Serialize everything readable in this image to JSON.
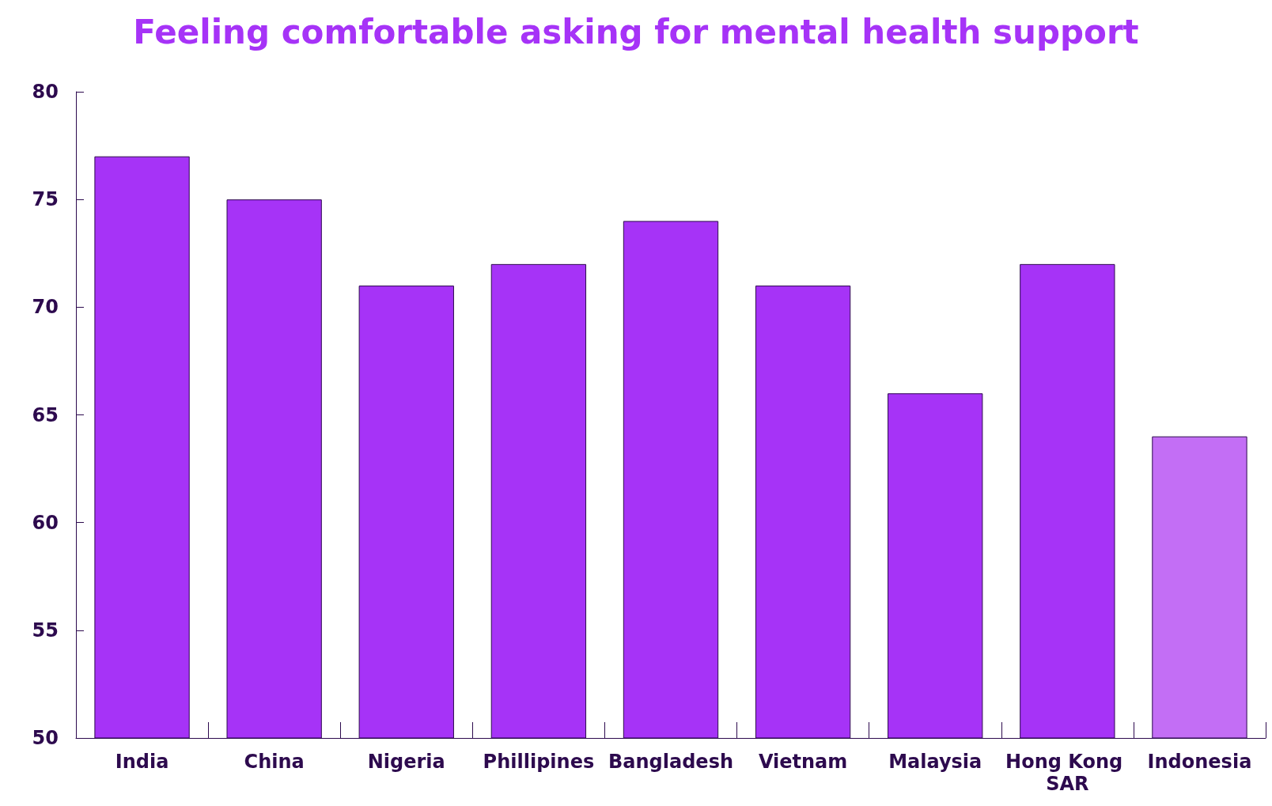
{
  "chart_data": {
    "type": "bar",
    "title": "Feeling comfortable asking for mental health support",
    "categories": [
      "India",
      "China",
      "Nigeria",
      "Phillipines",
      "Bangladesh",
      "Vietnam",
      "Malaysia",
      "Hong Kong SAR",
      "Indonesia"
    ],
    "values": [
      77,
      75,
      71,
      72,
      74,
      71,
      66,
      72,
      64
    ],
    "colors": [
      "#a633f7",
      "#a633f7",
      "#a633f7",
      "#a633f7",
      "#a633f7",
      "#a633f7",
      "#a633f7",
      "#a633f7",
      "#c36ef5"
    ],
    "ylim": [
      50,
      80
    ],
    "yticks": [
      50,
      55,
      60,
      65,
      70,
      75,
      80
    ],
    "grid": false
  }
}
